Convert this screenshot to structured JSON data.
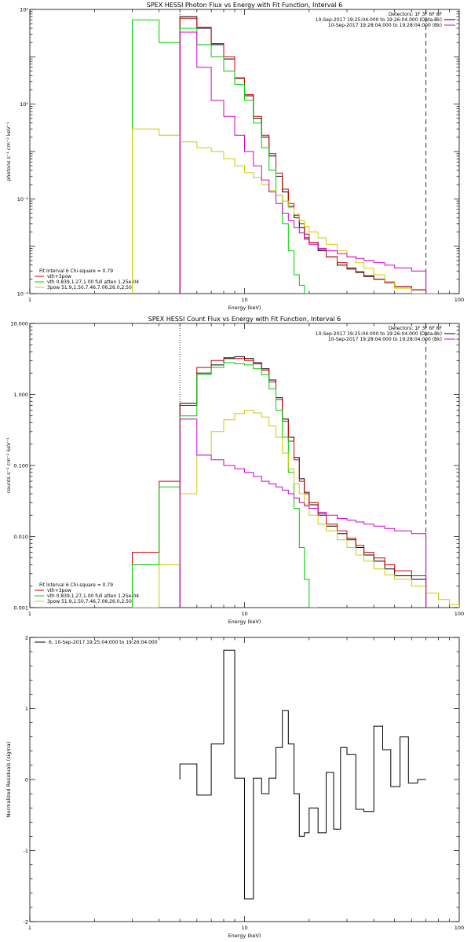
{
  "chart_data": [
    {
      "type": "line",
      "title": "SPEX HESSI Photon Flux vs Energy with Fit Function, Interval 6",
      "xlabel": "Energy (keV)",
      "ylabel": "photons s⁻¹ cm⁻² keV⁻¹",
      "xscale": "log",
      "yscale": "log",
      "xlim": [
        1,
        100
      ],
      "ylim": [
        0.0001,
        100
      ],
      "xticks": [
        {
          "v": 1,
          "label": "1"
        },
        {
          "v": 10,
          "label": "10"
        },
        {
          "v": 100,
          "label": "100"
        }
      ],
      "yticks": [
        {
          "v": 0.0001,
          "label": "10⁻⁴"
        },
        {
          "v": 0.01,
          "label": "10⁻²"
        },
        {
          "v": 1,
          "label": "10⁰"
        },
        {
          "v": 100,
          "label": "10²"
        }
      ],
      "legend_top": [
        "Detectors: 1F 3F 6F 8F",
        "10-Sep-2017 19:25:04.000 to 19:26:04.000 (Data-Bk)",
        "10-Sep-2017 19:28:04.000 to 19:28:04.000 (Bk)"
      ],
      "legend_top_colors": [
        "",
        "#000000",
        "#cc00cc"
      ],
      "legend_bottom": [
        "Fit Interval 6   Chi-square = 0.79",
        "vth+3pow",
        "vth 0.839,1.27,1.00  full atten 1.25e-04",
        "3pow 51.9,1.50,7.46,7.06,26.0,2.50"
      ],
      "legend_bottom_colors": [
        "",
        "#cc0000",
        "#00cc00",
        "#cccc00"
      ],
      "vlines": [
        {
          "x": 5,
          "style": "dotted"
        },
        {
          "x": 70,
          "style": "dashed"
        }
      ],
      "edges": [
        3,
        4,
        5,
        6,
        7,
        8,
        9,
        10,
        11,
        12,
        13,
        14,
        15,
        16,
        17,
        18,
        19,
        20,
        22,
        24,
        27,
        30,
        33,
        36,
        40,
        45,
        50,
        60,
        70,
        80
      ],
      "series": [
        {
          "name": "Data-Bk",
          "color": "#000000",
          "values": [
            null,
            null,
            70,
            40,
            18,
            9,
            3.5,
            1.5,
            0.5,
            0.2,
            0.08,
            0.03,
            0.014,
            0.007,
            0.004,
            0.0025,
            0.0015,
            0.0012,
            0.0008,
            0.0006,
            0.0004,
            0.00033,
            0.00028,
            0.00023,
            0.0002,
            0.00017,
            0.00014,
            0.00012,
            null
          ]
        },
        {
          "name": "vth+3pow",
          "color": "#cc0000",
          "values": [
            null,
            null,
            65,
            42,
            19,
            10,
            3.6,
            1.6,
            0.55,
            0.22,
            0.09,
            0.035,
            0.016,
            0.008,
            0.0045,
            0.003,
            0.0018,
            0.0012,
            0.00085,
            0.0006,
            0.00045,
            0.00035,
            0.00029,
            0.00024,
            0.0002,
            0.00017,
            0.00014,
            0.00012,
            null
          ]
        },
        {
          "name": "vth",
          "color": "#00cc00",
          "values": [
            60,
            20,
            40,
            18,
            10,
            5,
            2.6,
            1.2,
            0.4,
            0.12,
            0.04,
            0.012,
            0.003,
            0.0008,
            0.00025,
            0.00015,
            0.0001,
            null,
            null,
            null,
            null,
            null,
            null,
            null,
            null,
            null,
            null,
            null,
            null
          ]
        },
        {
          "name": "3pow",
          "color": "#cccc00",
          "values": [
            0.3,
            0.22,
            0.16,
            0.12,
            0.1,
            0.07,
            0.05,
            0.036,
            0.028,
            0.02,
            0.015,
            0.012,
            0.009,
            0.0065,
            0.0048,
            0.0035,
            0.0026,
            0.002,
            0.0015,
            0.0011,
            0.0008,
            0.0006,
            0.00045,
            0.00034,
            0.00025,
            0.00018,
            0.00013,
            0.0001,
            0.0001
          ]
        },
        {
          "name": "Bk",
          "color": "#cc00cc",
          "values": [
            null,
            null,
            33,
            6,
            1.2,
            0.55,
            0.22,
            0.1,
            0.05,
            0.025,
            0.014,
            0.008,
            0.005,
            0.0035,
            0.0025,
            0.0019,
            0.0014,
            0.0011,
            0.0009,
            0.0008,
            0.0007,
            0.0006,
            0.00055,
            0.0005,
            0.00045,
            0.0004,
            0.00035,
            0.0003,
            null
          ]
        }
      ]
    },
    {
      "type": "line",
      "title": "SPEX HESSI Count Flux vs Energy with Fit Function, Interval 6",
      "xlabel": "Energy (keV)",
      "ylabel": "counts s⁻¹ cm⁻² keV⁻¹",
      "xscale": "log",
      "yscale": "log",
      "xlim": [
        1,
        100
      ],
      "ylim": [
        0.001,
        10
      ],
      "xticks": [
        {
          "v": 1,
          "label": "1"
        },
        {
          "v": 10,
          "label": "10"
        },
        {
          "v": 100,
          "label": "100"
        }
      ],
      "yticks": [
        {
          "v": 0.001,
          "label": "0.001"
        },
        {
          "v": 0.01,
          "label": "0.010"
        },
        {
          "v": 0.1,
          "label": "0.100"
        },
        {
          "v": 1,
          "label": "1.000"
        },
        {
          "v": 10,
          "label": "10.000"
        }
      ],
      "legend_top": [
        "Detectors: 1F 3F 6F 8F",
        "10-Sep-2017 19:25:04.000 to 19:26:04.000 (Data-Bk)",
        "10-Sep-2017 19:28:04.000 to 19:28:04.000 (Bk)"
      ],
      "legend_top_colors": [
        "",
        "#000000",
        "#cc00cc"
      ],
      "legend_bottom": [
        "Fit Interval 6   Chi-square = 0.79",
        "vth+3pow",
        "vth 0.839,1.27,1.00  full atten 1.25e-04",
        "3pow 51.9,1.50,7.46,7.06,26.0,2.50"
      ],
      "legend_bottom_colors": [
        "",
        "#cc0000",
        "#00cc00",
        "#cccc00"
      ],
      "vlines": [
        {
          "x": 5,
          "style": "dotted"
        },
        {
          "x": 70,
          "style": "dashed"
        }
      ],
      "edges": [
        3,
        4,
        5,
        6,
        7,
        8,
        9,
        10,
        11,
        12,
        13,
        14,
        15,
        16,
        17,
        18,
        19,
        20,
        22,
        24,
        27,
        30,
        33,
        36,
        40,
        45,
        50,
        60,
        70,
        80,
        90,
        100
      ],
      "series": [
        {
          "name": "Data-Bk",
          "color": "#000000",
          "values": [
            null,
            null,
            0.75,
            2.0,
            2.6,
            3.2,
            3.4,
            3.2,
            2.8,
            2.3,
            1.6,
            0.9,
            0.45,
            0.25,
            0.13,
            0.065,
            0.042,
            0.028,
            0.02,
            0.014,
            0.011,
            0.009,
            0.007,
            0.0055,
            0.0045,
            0.0035,
            0.0028,
            0.0025,
            null,
            null,
            null
          ]
        },
        {
          "name": "vth+3pow",
          "color": "#cc0000",
          "values": [
            0.006,
            0.06,
            0.7,
            2.4,
            3.0,
            3.3,
            3.2,
            3.0,
            2.7,
            2.2,
            1.5,
            0.85,
            0.42,
            0.22,
            0.12,
            0.06,
            0.04,
            0.03,
            0.021,
            0.015,
            0.012,
            0.0095,
            0.0075,
            0.006,
            0.005,
            0.004,
            0.0033,
            0.0028,
            null,
            null,
            null
          ]
        },
        {
          "name": "vth",
          "color": "#00cc00",
          "values": [
            0.004,
            0.05,
            0.5,
            1.9,
            2.4,
            2.8,
            2.7,
            2.6,
            2.3,
            1.9,
            1.2,
            0.6,
            0.25,
            0.08,
            0.025,
            0.007,
            0.0025,
            0.001,
            null,
            null,
            null,
            null,
            null,
            null,
            null,
            null,
            null,
            null,
            null,
            null,
            null
          ]
        },
        {
          "name": "3pow",
          "color": "#cccc00",
          "values": [
            0.001,
            0.004,
            0.04,
            0.14,
            0.3,
            0.44,
            0.54,
            0.6,
            0.55,
            0.48,
            0.36,
            0.25,
            0.15,
            0.09,
            0.055,
            0.04,
            0.028,
            0.02,
            0.015,
            0.012,
            0.009,
            0.007,
            0.0055,
            0.0045,
            0.0035,
            0.0029,
            0.0025,
            0.002,
            0.0016,
            0.0013,
            0.0011
          ]
        },
        {
          "name": "Bk",
          "color": "#cc00cc",
          "values": [
            null,
            null,
            0.45,
            0.14,
            0.12,
            0.1,
            0.09,
            0.08,
            0.07,
            0.06,
            0.055,
            0.05,
            0.045,
            0.04,
            0.035,
            0.03,
            0.027,
            0.025,
            0.022,
            0.02,
            0.018,
            0.017,
            0.016,
            0.015,
            0.014,
            0.013,
            0.012,
            0.011,
            null,
            null,
            null
          ]
        }
      ]
    },
    {
      "type": "line",
      "title": "",
      "xlabel": "Energy (keV)",
      "ylabel": "Normalized Residuals (sigma)",
      "xscale": "log",
      "yscale": "linear",
      "xlim": [
        1,
        100
      ],
      "ylim": [
        -2,
        2
      ],
      "xticks": [
        {
          "v": 1,
          "label": "1"
        },
        {
          "v": 10,
          "label": "10"
        },
        {
          "v": 100,
          "label": "100"
        }
      ],
      "yticks": [
        {
          "v": -2,
          "label": "-2"
        },
        {
          "v": -1,
          "label": "-1"
        },
        {
          "v": 0,
          "label": "0"
        },
        {
          "v": 1,
          "label": "1"
        },
        {
          "v": 2,
          "label": "2"
        }
      ],
      "legend_top": [
        "6, 10-Sep-2017 19:25:04.000 to 19:26:04.000"
      ],
      "legend_top_colors": [
        "#000000"
      ],
      "legend_bottom": [],
      "legend_bottom_colors": [],
      "vlines": [],
      "edges": [
        5,
        6,
        7,
        8,
        9,
        10,
        11,
        12,
        13,
        14,
        15,
        16,
        17,
        18,
        19,
        20,
        22,
        24,
        26,
        28,
        30,
        33,
        36,
        40,
        44,
        48,
        53,
        58,
        64,
        70
      ],
      "series": [
        {
          "name": "6, 10-Sep-2017 19:25:04.000 to 19:26:04.000",
          "color": "#000000",
          "values": [
            0.22,
            -0.22,
            0.5,
            1.82,
            0.02,
            -1.68,
            0.02,
            -0.2,
            0.02,
            0.45,
            0.97,
            0.5,
            -0.2,
            -0.8,
            -0.75,
            -0.4,
            -0.75,
            0.1,
            -0.7,
            0.45,
            0.35,
            -0.42,
            -0.45,
            0.75,
            0.42,
            -0.1,
            0.6,
            -0.05,
            0.0
          ]
        }
      ]
    }
  ]
}
